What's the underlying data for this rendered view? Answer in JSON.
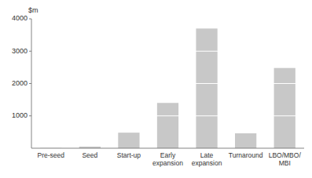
{
  "chart_data": {
    "type": "bar",
    "categories": [
      "Pre-seed",
      "Seed",
      "Start-up",
      "Early\nexpansion",
      "Late\nexpansion",
      "Turnaround",
      "LBO/MBO/\nMBI"
    ],
    "values": [
      5,
      50,
      480,
      1400,
      3700,
      460,
      2480
    ],
    "color": "#c8c8c8",
    "ylabel": "$m",
    "ylim": [
      0,
      4000
    ],
    "yticks": [
      1000,
      2000,
      3000,
      4000
    ],
    "grid": true
  }
}
